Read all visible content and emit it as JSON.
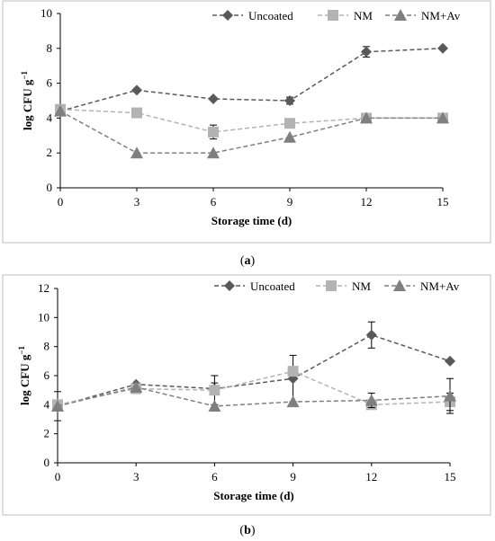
{
  "chart_data": [
    {
      "type": "line",
      "caption": "a",
      "x": [
        0,
        3,
        6,
        9,
        12,
        15
      ],
      "xlabel": "Storage time (d)",
      "ylabel": "log CFU g",
      "ylabel_sup": "−1",
      "xlim": [
        0,
        15
      ],
      "ylim": [
        0,
        10
      ],
      "yticks": [
        0,
        2,
        4,
        6,
        8,
        10
      ],
      "grid": false,
      "legend_position": "top-right",
      "series": [
        {
          "name": "Uncoated",
          "values": [
            4.4,
            5.6,
            5.1,
            5.0,
            7.8,
            8.0
          ],
          "errors": [
            0,
            0,
            0,
            0.2,
            0.3,
            0
          ],
          "color": "#595959",
          "marker": "diamond"
        },
        {
          "name": "NM",
          "values": [
            4.5,
            4.3,
            3.2,
            3.7,
            4.0,
            4.0
          ],
          "errors": [
            0,
            0,
            0.4,
            0,
            0,
            0
          ],
          "color": "#b3b3b3",
          "marker": "square"
        },
        {
          "name": "NM+Av",
          "values": [
            4.4,
            2.0,
            2.0,
            2.9,
            4.0,
            4.0
          ],
          "errors": [
            0,
            0,
            0,
            0,
            0,
            0
          ],
          "color": "#7f7f7f",
          "marker": "triangle"
        }
      ]
    },
    {
      "type": "line",
      "caption": "b",
      "x": [
        0,
        3,
        6,
        9,
        12,
        15
      ],
      "xlabel": "Storage time (d)",
      "ylabel": "log CFU g",
      "ylabel_sup": "−1",
      "xlim": [
        0,
        15
      ],
      "ylim": [
        0,
        12
      ],
      "yticks": [
        0,
        2,
        4,
        6,
        8,
        10,
        12
      ],
      "grid": false,
      "legend_position": "top-right",
      "series": [
        {
          "name": "Uncoated",
          "values": [
            3.9,
            5.4,
            5.1,
            5.8,
            8.8,
            7.0
          ],
          "errors": [
            1.0,
            0,
            0.4,
            1.6,
            0.9,
            0
          ],
          "color": "#595959",
          "marker": "diamond"
        },
        {
          "name": "NM",
          "values": [
            4.0,
            5.1,
            5.0,
            6.3,
            4.0,
            4.2
          ],
          "errors": [
            0,
            0,
            1.0,
            0,
            0,
            0.6
          ],
          "color": "#b3b3b3",
          "marker": "square"
        },
        {
          "name": "NM+Av",
          "values": [
            3.9,
            5.2,
            3.9,
            4.2,
            4.3,
            4.6
          ],
          "errors": [
            0,
            0,
            0,
            0,
            0.5,
            1.2
          ],
          "color": "#7f7f7f",
          "marker": "triangle"
        }
      ]
    }
  ]
}
